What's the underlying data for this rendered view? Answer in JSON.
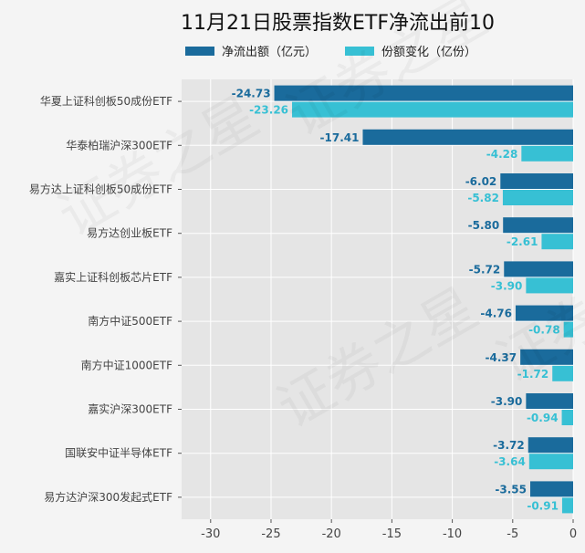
{
  "chart_data": {
    "type": "bar",
    "orientation": "horizontal",
    "title": "11月21日股票指数ETF净流出前10",
    "categories": [
      "华夏上证科创板50成份ETF",
      "华泰柏瑞沪深300ETF",
      "易方达上证科创板50成份ETF",
      "易方达创业板ETF",
      "嘉实上证科创板芯片ETF",
      "南方中证500ETF",
      "南方中证1000ETF",
      "嘉实沪深300ETF",
      "国联安中证半导体ETF",
      "易方达沪深300发起式ETF"
    ],
    "series": [
      {
        "name": "净流出额（亿元）",
        "color": "#1a6b9c",
        "values": [
          -24.73,
          -17.41,
          -6.02,
          -5.8,
          -5.72,
          -4.76,
          -4.37,
          -3.9,
          -3.72,
          -3.55
        ]
      },
      {
        "name": "份额变化（亿份）",
        "color": "#37c0d4",
        "values": [
          -23.26,
          -4.28,
          -5.82,
          -2.61,
          -3.9,
          -0.78,
          -1.72,
          -0.94,
          -3.64,
          -0.91
        ]
      }
    ],
    "xticks": [
      -30,
      -25,
      -20,
      -15,
      -10,
      -5,
      0
    ],
    "xlim": [
      -32.4,
      0
    ],
    "grid": true,
    "legend": "top",
    "watermark": "证券之星"
  }
}
